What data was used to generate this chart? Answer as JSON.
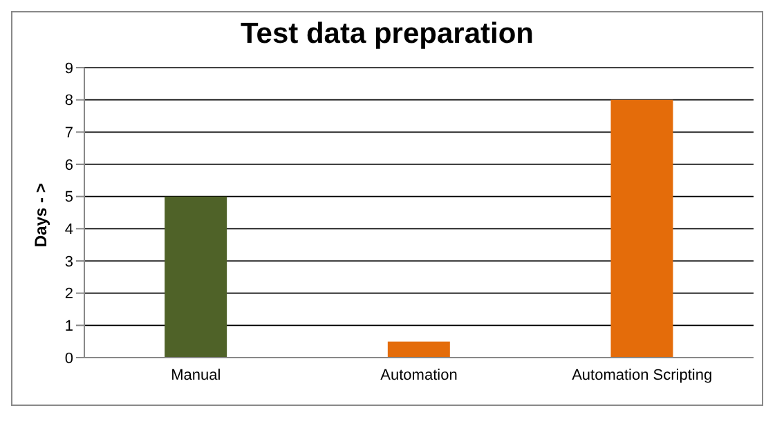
{
  "chart_data": {
    "type": "bar",
    "title": "Test data preparation",
    "ylabel": "Days - >",
    "categories": [
      "Manual",
      "Automation",
      "Automation Scripting"
    ],
    "values": [
      5,
      0.5,
      8
    ],
    "colors": [
      "#4f6228",
      "#e46c0a",
      "#e46c0a"
    ],
    "ylim": [
      0,
      9
    ],
    "yticks": [
      0,
      1,
      2,
      3,
      4,
      5,
      6,
      7,
      8,
      9
    ],
    "grid": "y"
  }
}
